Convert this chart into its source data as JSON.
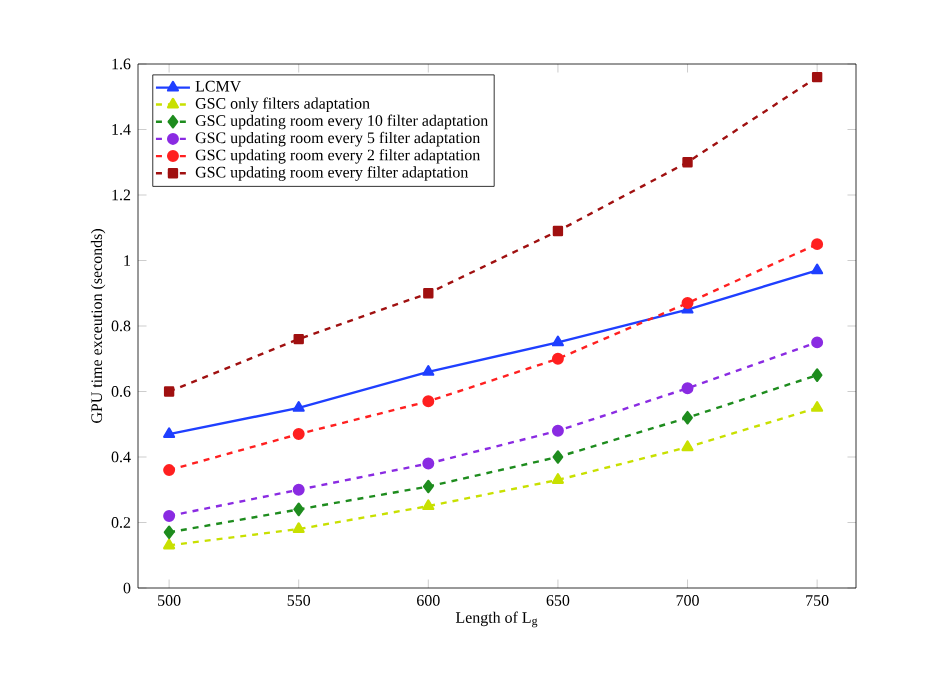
{
  "chart_data": {
    "type": "line",
    "xlabel": "Length of L$_{g}$",
    "ylabel": "GPU time exceution (seconds)",
    "x": [
      500,
      550,
      600,
      650,
      700,
      750
    ],
    "xlim": [
      488,
      765
    ],
    "xticks": [
      500,
      550,
      600,
      650,
      700,
      750
    ],
    "ylim": [
      0,
      1.6
    ],
    "yticks": [
      0,
      0.2,
      0.4,
      0.6,
      0.8,
      1,
      1.2,
      1.4,
      1.6
    ],
    "grid": false,
    "legend": "top left",
    "series": [
      {
        "name": "LCMV",
        "color": "#1f3fff",
        "marker": "triangle",
        "line_style": "solid",
        "values": [
          0.47,
          0.55,
          0.66,
          0.75,
          0.85,
          0.97
        ]
      },
      {
        "name": "GSC only filters adaptation",
        "color": "#c8e000",
        "marker": "triangle",
        "line_style": "dashed",
        "values": [
          0.13,
          0.18,
          0.25,
          0.33,
          0.43,
          0.55
        ]
      },
      {
        "name": "GSC updating room every 10 filter adaptation",
        "color": "#1e8c1e",
        "marker": "diamond",
        "line_style": "dashed",
        "values": [
          0.17,
          0.24,
          0.31,
          0.4,
          0.52,
          0.65
        ]
      },
      {
        "name": "GSC updating room every 5 filter adaptation",
        "color": "#8a2be2",
        "marker": "circle",
        "line_style": "dashed",
        "values": [
          0.22,
          0.3,
          0.38,
          0.48,
          0.61,
          0.75
        ]
      },
      {
        "name": "GSC updating room every 2 filter adaptation",
        "color": "#ff2020",
        "marker": "circle",
        "line_style": "dashed",
        "values": [
          0.36,
          0.47,
          0.57,
          0.7,
          0.87,
          1.05
        ]
      },
      {
        "name": "GSC updating room every filter adaptation",
        "color": "#a01010",
        "marker": "square",
        "line_style": "dashed",
        "values": [
          0.6,
          0.76,
          0.9,
          1.09,
          1.3,
          1.56
        ]
      }
    ]
  }
}
